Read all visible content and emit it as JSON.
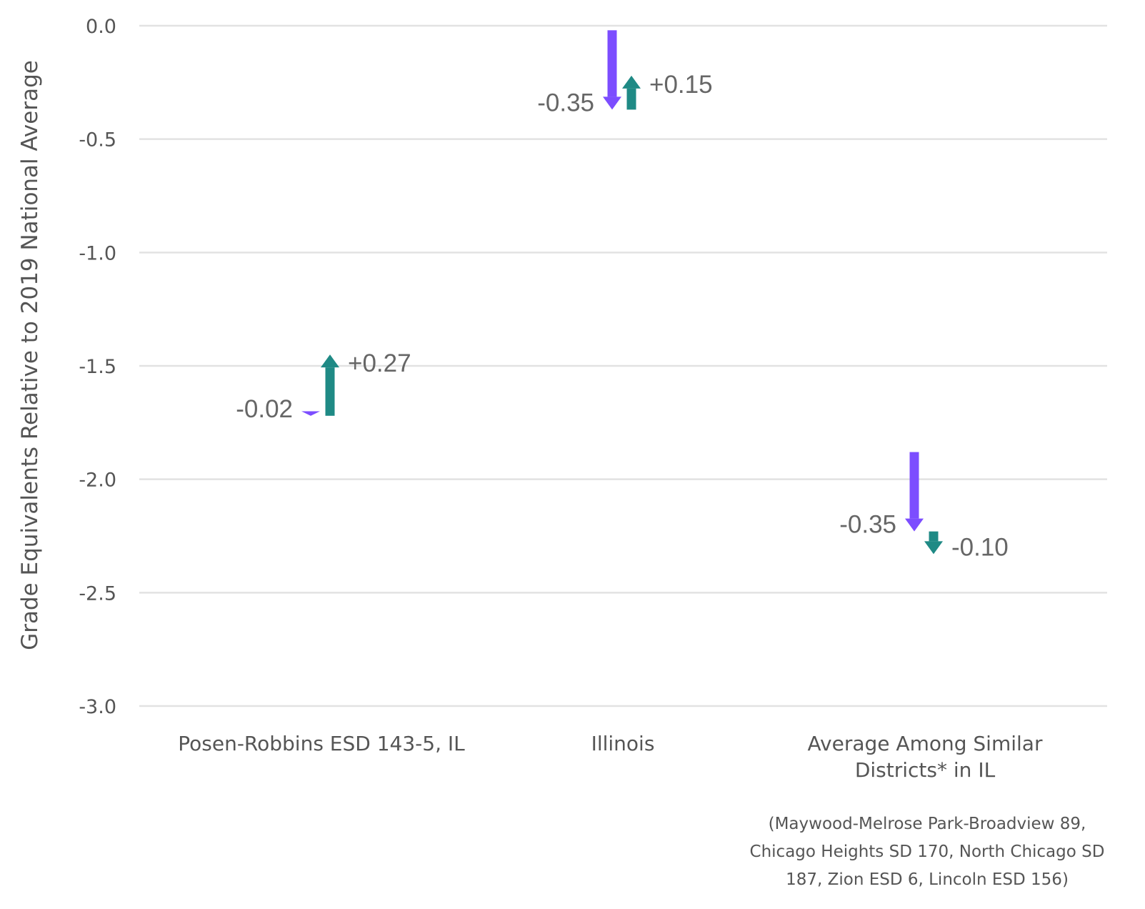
{
  "chart_data": {
    "type": "arrow",
    "ylabel": "Grade Equivalents Relative to 2019 National Average",
    "ylim": [
      -3.0,
      0.0
    ],
    "yticks": [
      "0.0",
      "-0.5",
      "-1.0",
      "-1.5",
      "-2.0",
      "-2.5",
      "-3.0"
    ],
    "grid": true,
    "colors": {
      "first_change": "#7c4dff",
      "second_change": "#1f8a85"
    },
    "categories": [
      {
        "label_lines": [
          "Posen-Robbins ESD 143-5, IL"
        ],
        "start": -1.7,
        "changes": [
          {
            "value": -0.02,
            "label": "-0.02"
          },
          {
            "value": 0.27,
            "label": "+0.27"
          }
        ]
      },
      {
        "label_lines": [
          "Illinois"
        ],
        "start": -0.02,
        "changes": [
          {
            "value": -0.35,
            "label": "-0.35"
          },
          {
            "value": 0.15,
            "label": "+0.15"
          }
        ]
      },
      {
        "label_lines": [
          "Average Among Similar",
          "Districts* in IL"
        ],
        "start": -1.88,
        "changes": [
          {
            "value": -0.35,
            "label": "-0.35"
          },
          {
            "value": -0.1,
            "label": "-0.10"
          }
        ]
      }
    ],
    "footnote_lines": [
      "(Maywood-Melrose Park-Broadview 89,",
      "Chicago Heights SD 170, North Chicago SD",
      "187, Zion ESD 6, Lincoln ESD 156)"
    ]
  }
}
